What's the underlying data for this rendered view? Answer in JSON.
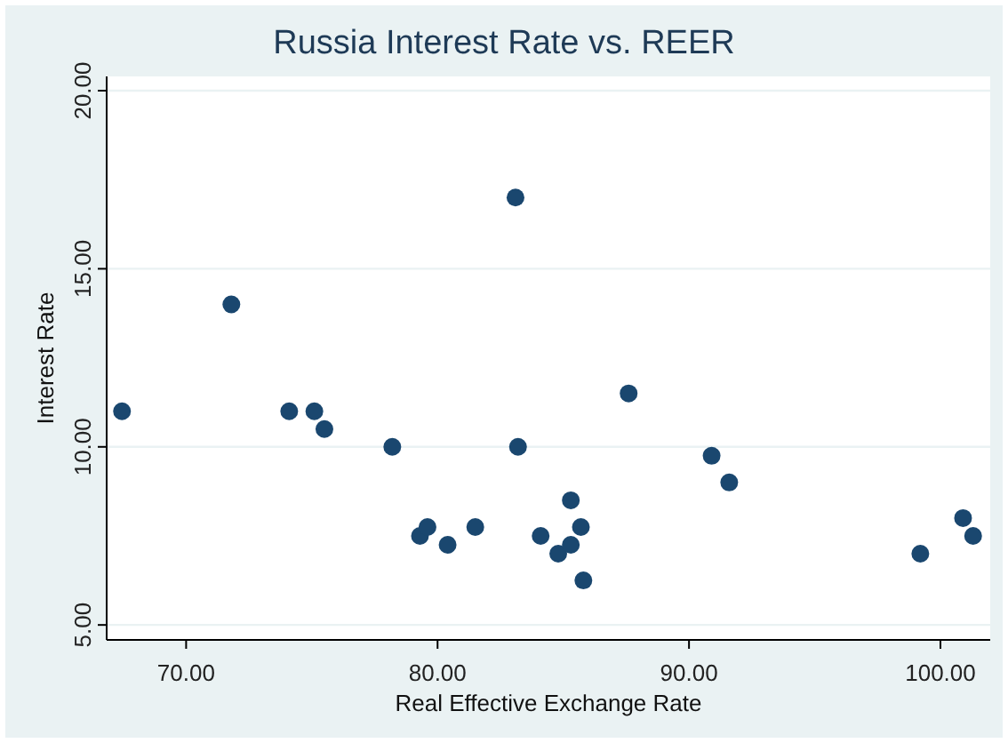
{
  "chart_data": {
    "type": "scatter",
    "title": "Russia  Interest Rate vs. REER",
    "xlabel": "Real Effective Exchange Rate",
    "ylabel": "Interest Rate",
    "x": [
      67.45,
      71.8,
      74.1,
      75.1,
      75.5,
      78.2,
      79.3,
      79.6,
      80.4,
      81.5,
      83.1,
      83.2,
      84.1,
      84.8,
      85.3,
      85.3,
      85.7,
      85.8,
      87.6,
      90.9,
      91.6,
      99.2,
      100.9,
      101.3
    ],
    "series": [
      {
        "color": "#1a476f",
        "values": [
          11.0,
          14.0,
          11.0,
          11.0,
          10.5,
          10.0,
          7.5,
          7.75,
          7.25,
          7.75,
          17.0,
          10.0,
          7.5,
          7.0,
          8.5,
          7.25,
          7.75,
          6.25,
          11.5,
          9.75,
          9.0,
          7.0,
          8.0,
          7.5
        ]
      }
    ],
    "xlim": [
      66.84,
      101.98
    ],
    "ylim": [
      4.58,
      20.4
    ],
    "xticks": [
      {
        "value": 70,
        "label": "70.00"
      },
      {
        "value": 80,
        "label": "80.00"
      },
      {
        "value": 90,
        "label": "90.00"
      },
      {
        "value": 100,
        "label": "100.00"
      }
    ],
    "yticks": [
      {
        "value": 5,
        "label": "5.00"
      },
      {
        "value": 10,
        "label": "10.00"
      },
      {
        "value": 15,
        "label": "15.00"
      },
      {
        "value": 20,
        "label": "20.00"
      }
    ],
    "grid": "y",
    "marker": "circle"
  }
}
